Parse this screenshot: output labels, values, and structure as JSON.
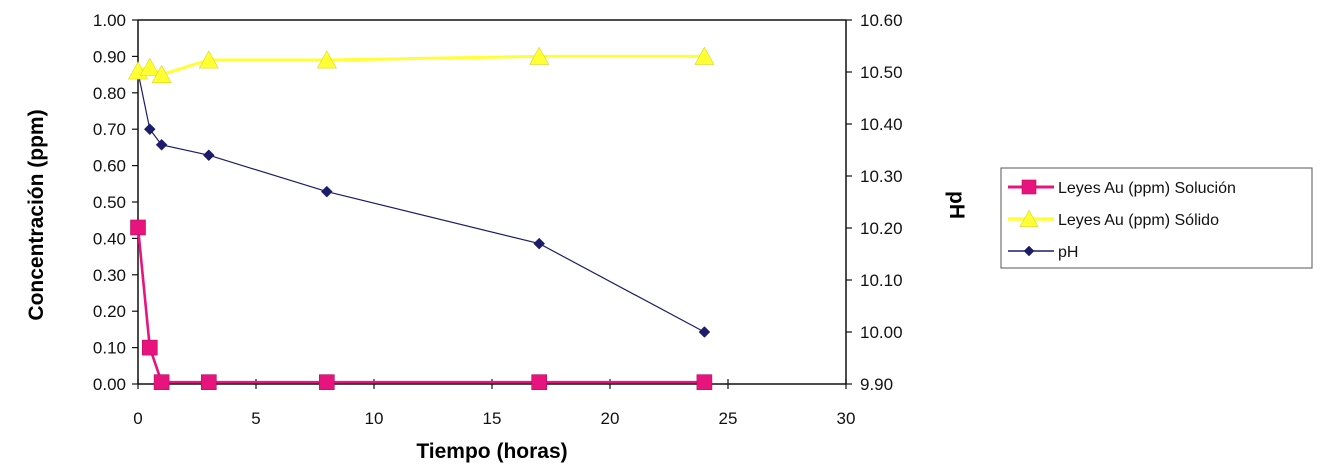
{
  "chart_data": {
    "type": "line",
    "title": "",
    "xlabel": "Tiempo (horas)",
    "ylabel": "Concentración (ppm)",
    "y2label": "pH",
    "xlim": [
      0,
      30
    ],
    "ylim": [
      0,
      1.0
    ],
    "y2lim": [
      9.9,
      10.6
    ],
    "x_ticks": [
      "0",
      "5",
      "10",
      "15",
      "20",
      "25",
      "30"
    ],
    "y_ticks": [
      "0.00",
      "0.10",
      "0.20",
      "0.30",
      "0.40",
      "0.50",
      "0.60",
      "0.70",
      "0.80",
      "0.90",
      "1.00"
    ],
    "y2_ticks": [
      "9.90",
      "10.00",
      "10.10",
      "10.20",
      "10.30",
      "10.40",
      "10.50",
      "10.60"
    ],
    "grid": false,
    "legend_position": "right",
    "series": [
      {
        "name": "Leyes Au (ppm) Solución",
        "axis": "left",
        "color": "#e8147e",
        "marker": "square",
        "x": [
          0,
          0.5,
          1,
          3,
          8,
          17,
          24
        ],
        "y": [
          0.43,
          0.1,
          0.005,
          0.005,
          0.005,
          0.005,
          0.005
        ]
      },
      {
        "name": "Leyes Au (ppm) Sólido",
        "axis": "left",
        "color": "#ffff33",
        "marker": "triangle",
        "x": [
          0,
          0.5,
          1,
          3,
          8,
          17,
          24
        ],
        "y": [
          0.86,
          0.87,
          0.85,
          0.89,
          0.89,
          0.9,
          0.9
        ]
      },
      {
        "name": "pH",
        "axis": "right",
        "color": "#1c1c6b",
        "marker": "diamond",
        "x": [
          0,
          0.5,
          1,
          3,
          8,
          17,
          24
        ],
        "y": [
          10.5,
          10.39,
          10.36,
          10.34,
          10.27,
          10.17,
          10.0
        ]
      }
    ]
  }
}
